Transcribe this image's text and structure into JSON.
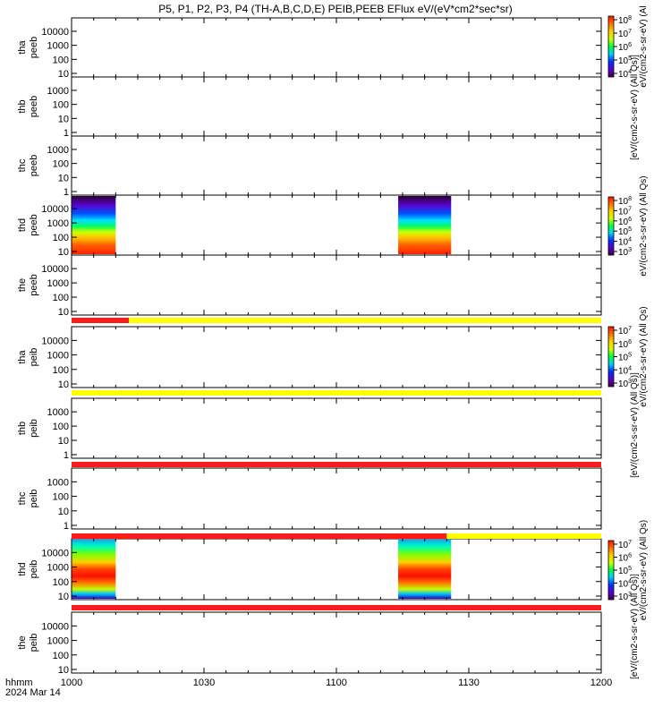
{
  "chart_data": {
    "type": "heatmap",
    "title": "P5, P1, P2, P3, P4 (TH-A,B,C,D,E) PEIB,PEEB EFlux eV/(eV*cm2*sec*sr)",
    "x_ticks": [
      "1000",
      "1030",
      "1100",
      "1130",
      "1200"
    ],
    "x_axis_hhmm": "hhmm",
    "x_axis_date": "2024 Mar 14",
    "x_range_min": [
      0,
      120
    ],
    "y_scale": "log",
    "colorbar_units_generic": "eV/(cm2-s-sr-eV)",
    "colorbar_units_allqs": "eV/(cm2-s-sr-eV) (All Qs)",
    "colorbar_label_extra": "[eV/(cm2-s-sr-eV) (All Qs)]",
    "colors": {
      "flag_red": "#ff1a1a",
      "flag_yellow": "#ffff00",
      "bg": "#ffffff",
      "colormap": [
        "#3b0042",
        "#5a00c8",
        "#0030ff",
        "#00d0ff",
        "#00ff40",
        "#c8ff00",
        "#ffd000",
        "#ff7000",
        "#ff1000"
      ]
    },
    "panels": [
      {
        "l1": "tha",
        "l2": "peeb",
        "yticks": [
          "10000",
          "1000",
          "100",
          "10"
        ],
        "data": []
      },
      {
        "l1": "thb",
        "l2": "peeb",
        "yticks": [
          "1000",
          "100",
          "10",
          "1"
        ],
        "data": []
      },
      {
        "l1": "thc",
        "l2": "peeb",
        "yticks": [
          "1000",
          "100",
          "10",
          "1"
        ],
        "data": []
      },
      {
        "l1": "thd",
        "l2": "peeb",
        "yticks": [
          "10000",
          "1000",
          "100",
          "10"
        ],
        "data": [
          {
            "x_start_min": 0,
            "x_end_min": 10
          },
          {
            "x_start_min": 74,
            "x_end_min": 86
          }
        ]
      },
      {
        "l1": "the",
        "l2": "peeb",
        "yticks": [
          "10000",
          "1000",
          "100",
          "10"
        ],
        "data": []
      },
      {
        "l1": "tha",
        "l2": "peib",
        "yticks": [
          "10000",
          "1000",
          "100",
          "10"
        ],
        "data": []
      },
      {
        "l1": "thb",
        "l2": "peib",
        "yticks": [
          "1000",
          "100",
          "10",
          "1"
        ],
        "data": []
      },
      {
        "l1": "thc",
        "l2": "peib",
        "yticks": [
          "1000",
          "100",
          "10",
          "1"
        ],
        "data": []
      },
      {
        "l1": "thd",
        "l2": "peib",
        "yticks": [
          "10000",
          "1000",
          "100",
          "10"
        ],
        "data": [
          {
            "x_start_min": 0,
            "x_end_min": 10
          },
          {
            "x_start_min": 74,
            "x_end_min": 86
          }
        ]
      },
      {
        "l1": "the",
        "l2": "peib",
        "yticks": [
          "10000",
          "1000",
          "100",
          "10"
        ],
        "data": []
      }
    ],
    "flag_bars": [
      {
        "segments": [
          {
            "from_min": 0,
            "to_min": 13,
            "color": "red"
          },
          {
            "from_min": 13,
            "to_min": 120,
            "color": "yellow"
          }
        ]
      },
      {
        "segments": [
          {
            "from_min": 0,
            "to_min": 120,
            "color": "yellow"
          }
        ]
      },
      {
        "segments": [
          {
            "from_min": 0,
            "to_min": 120,
            "color": "red"
          }
        ]
      },
      {
        "segments": [
          {
            "from_min": 0,
            "to_min": 85,
            "color": "red"
          },
          {
            "from_min": 85,
            "to_min": 120,
            "color": "yellow"
          }
        ]
      },
      {
        "segments": [
          {
            "from_min": 0,
            "to_min": 120,
            "color": "red"
          }
        ]
      }
    ],
    "colorbars": [
      {
        "ticks": [
          "10^8",
          "10^7",
          "10^6",
          "10^5",
          "10^4"
        ],
        "label": "eV/(cm2-s-sr-eV) (Al"
      },
      {
        "ticks": [
          "10^8",
          "10^7",
          "10^6",
          "10^5",
          "10^4",
          "10^3"
        ],
        "label": "eV/(cm2-s-sr-eV) (All Qs)"
      },
      {
        "ticks": [
          "10^7",
          "10^6",
          "10^5",
          "10^4",
          "10^3"
        ],
        "label": "eV/(cm2-s-sr-eV) (All Qs)"
      },
      {
        "ticks": [
          "10^7",
          "10^6",
          "10^5",
          "10^4",
          "10^3"
        ],
        "label": "eV/(cm2-s-sr-eV) (All Qs)"
      }
    ]
  }
}
